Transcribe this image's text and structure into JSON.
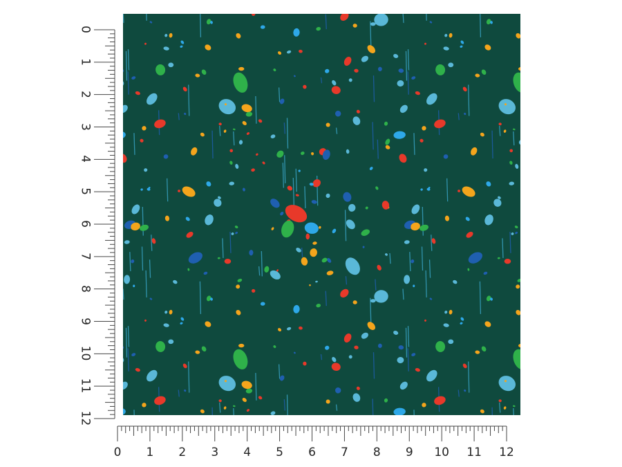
{
  "product": {
    "pattern_name": "Splatter paint on dark green",
    "background_color": "#0f4a3e",
    "splatter_colors": [
      "#e8392a",
      "#f4a51c",
      "#2ea8e8",
      "#1f5fb0",
      "#2fb14a",
      "#5ab8d8"
    ]
  },
  "ruler_vertical": {
    "labels": [
      "0",
      "1",
      "2",
      "3",
      "4",
      "5",
      "6",
      "7",
      "8",
      "9",
      "10",
      "11",
      "12"
    ],
    "unit": "in"
  },
  "ruler_horizontal": {
    "labels": [
      "0",
      "1",
      "2",
      "3",
      "4",
      "5",
      "6",
      "7",
      "8",
      "9",
      "10",
      "11",
      "12"
    ],
    "unit": "in"
  }
}
